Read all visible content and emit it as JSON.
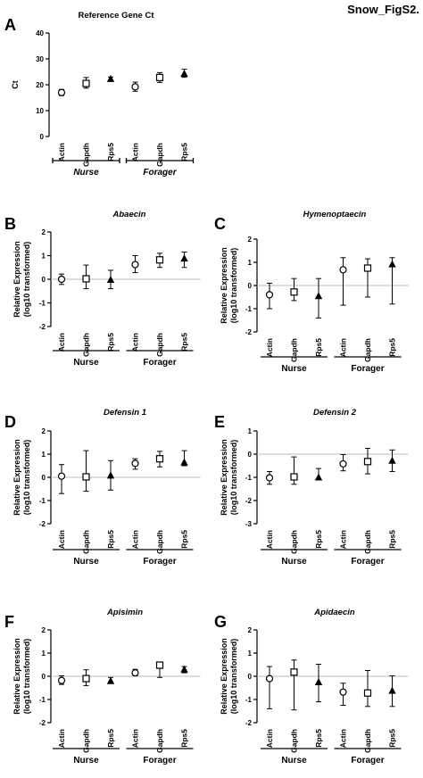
{
  "figure_label": "Snow_FigS2.",
  "chart_data": [
    {
      "panel": "A",
      "type": "scatter",
      "title": "Reference Gene Ct",
      "title_italic": false,
      "ylabel": "Ct",
      "ylim": [
        0,
        40
      ],
      "yticks": [
        0,
        10,
        20,
        30,
        40
      ],
      "zero_line": false,
      "categories": [
        "Actin",
        "Gapdh",
        "Rps5",
        "Actin",
        "Gapdh",
        "Rps5"
      ],
      "markers": [
        "circle",
        "square",
        "triangle",
        "circle",
        "square",
        "triangle"
      ],
      "values": [
        17,
        20.5,
        22.3,
        19.2,
        22.8,
        24.3
      ],
      "err_low": [
        15.8,
        18.7,
        21.6,
        17.5,
        20.9,
        22.9
      ],
      "err_high": [
        18.2,
        22.8,
        23.0,
        21.0,
        24.7,
        26.0
      ],
      "groups": [
        {
          "label": "Nurse",
          "range": [
            0,
            2
          ]
        },
        {
          "label": "Forager",
          "range": [
            3,
            5
          ]
        }
      ],
      "group_style": "ticked-italic"
    },
    {
      "panel": "B",
      "type": "scatter",
      "title": "Abaecin",
      "title_italic": true,
      "ylabel": "Relative Expression (log10 transformed)",
      "ylim": [
        -2,
        2
      ],
      "yticks": [
        -2,
        -1,
        0,
        1,
        2
      ],
      "zero_line": true,
      "categories": [
        "Actin",
        "Gapdh",
        "Rps5",
        "Actin",
        "Gapdh",
        "Rps5"
      ],
      "markers": [
        "circle",
        "square",
        "triangle",
        "circle",
        "square",
        "triangle"
      ],
      "values": [
        0.0,
        0.02,
        -0.02,
        0.62,
        0.82,
        0.88
      ],
      "err_low": [
        -0.22,
        -0.4,
        -0.4,
        0.28,
        0.5,
        0.5
      ],
      "err_high": [
        0.22,
        0.6,
        0.38,
        1.0,
        1.1,
        1.15
      ],
      "groups": [
        {
          "label": "Nurse",
          "range": [
            0,
            2
          ]
        },
        {
          "label": "Forager",
          "range": [
            3,
            5
          ]
        }
      ],
      "group_style": "plain"
    },
    {
      "panel": "C",
      "type": "scatter",
      "title": "Hymenoptaecin",
      "title_italic": true,
      "ylabel": "Relative Expression (log10 transformed)",
      "ylim": [
        -2,
        2
      ],
      "yticks": [
        -2,
        -1,
        0,
        1,
        2
      ],
      "zero_line": true,
      "categories": [
        "Actin",
        "Gapdh",
        "Rps5",
        "Actin",
        "Gapdh",
        "Rps5"
      ],
      "markers": [
        "circle",
        "square",
        "triangle",
        "circle",
        "square",
        "triangle"
      ],
      "values": [
        -0.4,
        -0.28,
        -0.45,
        0.68,
        0.75,
        0.92
      ],
      "err_low": [
        -1.0,
        -0.65,
        -1.4,
        -0.85,
        -0.5,
        -0.8
      ],
      "err_high": [
        0.1,
        0.3,
        0.3,
        1.2,
        1.15,
        1.2
      ],
      "groups": [
        {
          "label": "Nurse",
          "range": [
            0,
            2
          ]
        },
        {
          "label": "Forager",
          "range": [
            3,
            5
          ]
        }
      ],
      "group_style": "plain"
    },
    {
      "panel": "D",
      "type": "scatter",
      "title": "Defensin 1",
      "title_italic": true,
      "ylabel": "Relative Expression (log10 transformed)",
      "ylim": [
        -2,
        2
      ],
      "yticks": [
        -2,
        -1,
        0,
        1,
        2
      ],
      "zero_line": true,
      "categories": [
        "Actin",
        "Gapdh",
        "Rps5",
        "Actin",
        "Gapdh",
        "Rps5"
      ],
      "markers": [
        "circle",
        "square",
        "triangle",
        "circle",
        "square",
        "triangle"
      ],
      "values": [
        0.05,
        0.02,
        0.08,
        0.6,
        0.8,
        0.65
      ],
      "err_low": [
        -0.7,
        -0.6,
        -0.55,
        0.35,
        0.45,
        0.5
      ],
      "err_high": [
        0.55,
        1.15,
        0.72,
        0.8,
        1.12,
        1.15
      ],
      "groups": [
        {
          "label": "Nurse",
          "range": [
            0,
            2
          ]
        },
        {
          "label": "Forager",
          "range": [
            3,
            5
          ]
        }
      ],
      "group_style": "plain"
    },
    {
      "panel": "E",
      "type": "scatter",
      "title": "Defensin 2",
      "title_italic": true,
      "ylabel": "Relative Expression (log10 transformed)",
      "ylim": [
        -3,
        1
      ],
      "yticks": [
        -3,
        -2,
        -1,
        0,
        1
      ],
      "zero_line": true,
      "categories": [
        "Actin",
        "Gapdh",
        "Rps5",
        "Actin",
        "Gapdh",
        "Rps5"
      ],
      "markers": [
        "circle",
        "square",
        "triangle",
        "circle",
        "square",
        "triangle"
      ],
      "values": [
        -1.02,
        -0.98,
        -1.0,
        -0.42,
        -0.32,
        -0.28
      ],
      "err_low": [
        -1.3,
        -1.3,
        -1.1,
        -0.72,
        -0.85,
        -0.75
      ],
      "err_high": [
        -0.75,
        -0.12,
        -0.62,
        -0.02,
        0.25,
        0.18
      ],
      "groups": [
        {
          "label": "Nurse",
          "range": [
            0,
            2
          ]
        },
        {
          "label": "Forager",
          "range": [
            3,
            5
          ]
        }
      ],
      "group_style": "plain"
    },
    {
      "panel": "F",
      "type": "scatter",
      "title": "Apisimin",
      "title_italic": true,
      "ylabel": "Relative Expression (log10 transformed)",
      "ylim": [
        -2,
        2
      ],
      "yticks": [
        -2,
        -1,
        0,
        1,
        2
      ],
      "zero_line": true,
      "categories": [
        "Actin",
        "Gapdh",
        "Rps5",
        "Actin",
        "Gapdh",
        "Rps5"
      ],
      "markers": [
        "circle",
        "square",
        "triangle",
        "circle",
        "square",
        "triangle"
      ],
      "values": [
        -0.18,
        -0.1,
        -0.2,
        0.15,
        0.48,
        0.3
      ],
      "err_low": [
        -0.35,
        -0.4,
        -0.3,
        0.02,
        -0.05,
        0.15
      ],
      "err_high": [
        0.02,
        0.28,
        -0.05,
        0.3,
        0.55,
        0.42
      ],
      "groups": [
        {
          "label": "Nurse",
          "range": [
            0,
            2
          ]
        },
        {
          "label": "Forager",
          "range": [
            3,
            5
          ]
        }
      ],
      "group_style": "plain"
    },
    {
      "panel": "G",
      "type": "scatter",
      "title": "Apidaecin",
      "title_italic": true,
      "ylabel": "Relative Expression (log10 transformed)",
      "ylim": [
        -2,
        2
      ],
      "yticks": [
        -2,
        -1,
        0,
        1,
        2
      ],
      "zero_line": true,
      "categories": [
        "Actin",
        "Gapdh",
        "Rps5",
        "Actin",
        "Gapdh",
        "Rps5"
      ],
      "markers": [
        "circle",
        "square",
        "triangle",
        "circle",
        "square",
        "triangle"
      ],
      "values": [
        -0.1,
        0.18,
        -0.25,
        -0.68,
        -0.72,
        -0.62
      ],
      "err_low": [
        -1.4,
        -1.45,
        -1.1,
        -1.25,
        -1.3,
        -1.3
      ],
      "err_high": [
        0.42,
        0.7,
        0.52,
        -0.3,
        0.25,
        0.02
      ],
      "groups": [
        {
          "label": "Nurse",
          "range": [
            0,
            2
          ]
        },
        {
          "label": "Forager",
          "range": [
            3,
            5
          ]
        }
      ],
      "group_style": "plain"
    }
  ]
}
